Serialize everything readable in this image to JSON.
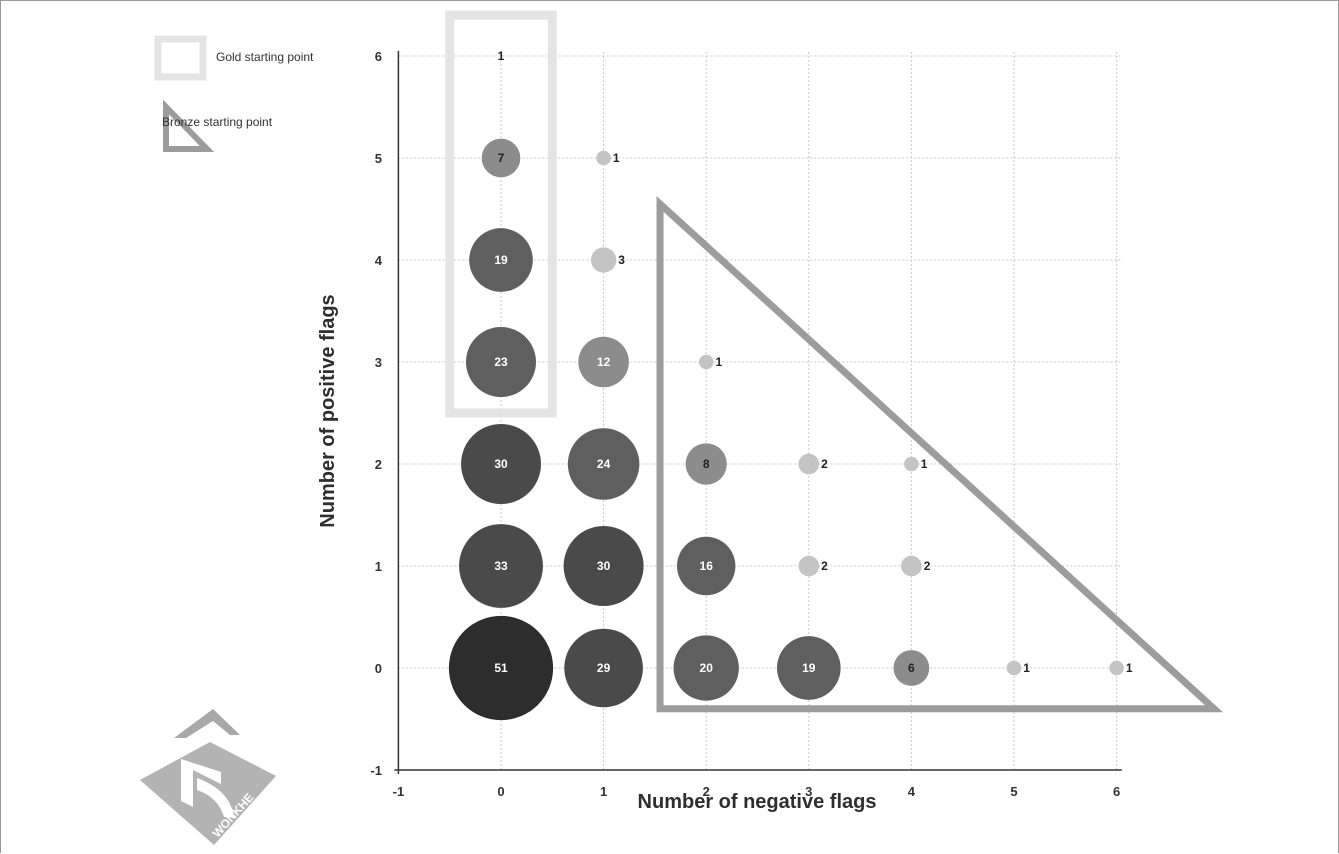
{
  "chart_data": {
    "type": "scatter",
    "xlabel": "Number of negative flags",
    "ylabel": "Number of positive flags",
    "xlim": [
      -1,
      6
    ],
    "ylim": [
      -1,
      6
    ],
    "x_ticks": [
      "-1",
      "0",
      "1",
      "2",
      "3",
      "4",
      "5",
      "6"
    ],
    "y_ticks": [
      "-1",
      "0",
      "1",
      "2",
      "3",
      "4",
      "5",
      "6"
    ],
    "grid": true,
    "legend": [
      {
        "label": "Gold starting point",
        "shape": "rectangle"
      },
      {
        "label": "Bronze starting point",
        "shape": "triangle"
      }
    ],
    "legend_position": "top-left",
    "colors": {
      "gold_outline": "#e4e4e4",
      "bronze_outline": "#9c9c9c",
      "bubble_dark": "#2d2d2d",
      "bubble_mid": "#5f5f5f",
      "bubble_light": "#8c8c8c",
      "bubble_tiny": "#c4c4c4"
    },
    "points": [
      {
        "x": 0,
        "y": 6,
        "value": 1
      },
      {
        "x": 0,
        "y": 5,
        "value": 7
      },
      {
        "x": 1,
        "y": 5,
        "value": 1
      },
      {
        "x": 0,
        "y": 4,
        "value": 19
      },
      {
        "x": 1,
        "y": 4,
        "value": 3
      },
      {
        "x": 0,
        "y": 3,
        "value": 23
      },
      {
        "x": 1,
        "y": 3,
        "value": 12
      },
      {
        "x": 2,
        "y": 3,
        "value": 1
      },
      {
        "x": 0,
        "y": 2,
        "value": 30
      },
      {
        "x": 1,
        "y": 2,
        "value": 24
      },
      {
        "x": 2,
        "y": 2,
        "value": 8
      },
      {
        "x": 3,
        "y": 2,
        "value": 2
      },
      {
        "x": 4,
        "y": 2,
        "value": 1
      },
      {
        "x": 0,
        "y": 1,
        "value": 33
      },
      {
        "x": 1,
        "y": 1,
        "value": 30
      },
      {
        "x": 2,
        "y": 1,
        "value": 16
      },
      {
        "x": 3,
        "y": 1,
        "value": 2
      },
      {
        "x": 4,
        "y": 1,
        "value": 2
      },
      {
        "x": 0,
        "y": 0,
        "value": 51
      },
      {
        "x": 1,
        "y": 0,
        "value": 29
      },
      {
        "x": 2,
        "y": 0,
        "value": 20
      },
      {
        "x": 3,
        "y": 0,
        "value": 19
      },
      {
        "x": 4,
        "y": 0,
        "value": 6
      },
      {
        "x": 5,
        "y": 0,
        "value": 1
      },
      {
        "x": 6,
        "y": 0,
        "value": 1
      }
    ],
    "gold_region": {
      "x_range": [
        -0.5,
        0.5
      ],
      "y_range": [
        2.5,
        6.4
      ]
    },
    "bronze_region": {
      "vertices": [
        [
          1.55,
          4.55
        ],
        [
          1.55,
          -0.4
        ],
        [
          6.95,
          -0.4
        ]
      ]
    }
  },
  "logo": {
    "text": "WONKHE"
  }
}
